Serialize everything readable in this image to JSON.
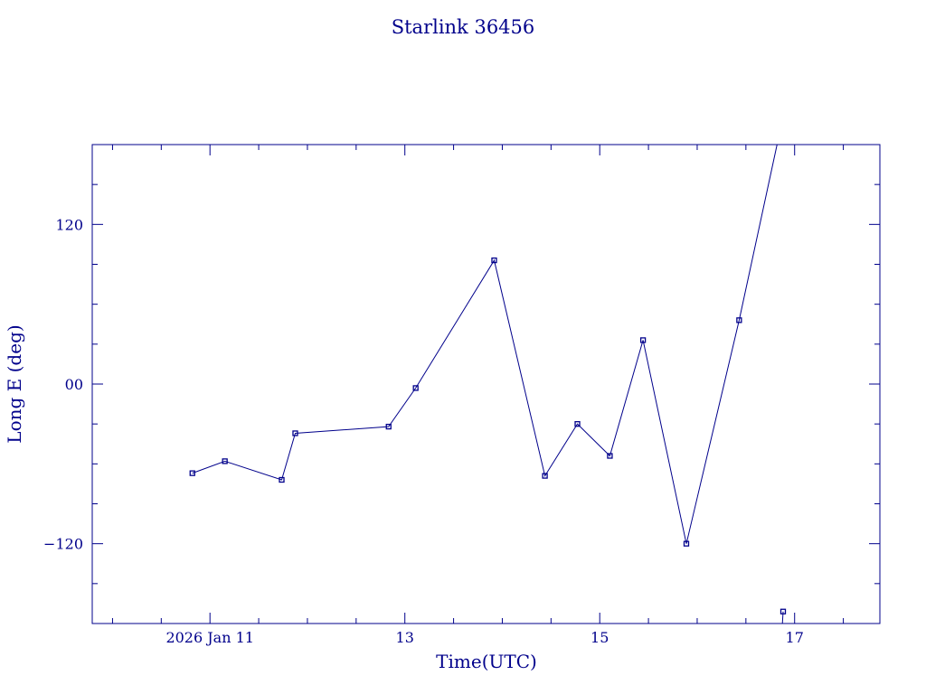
{
  "chart_data": {
    "type": "line",
    "title": "Starlink 36456",
    "xlabel": "Time(UTC)",
    "ylabel": "Long E (deg)",
    "x_unit": "date (UTC)",
    "xlim": [
      "2026-01-09T19:00:00Z",
      "2026-01-17T21:00:00Z"
    ],
    "ylim": [
      -180,
      180
    ],
    "x_ticks": [
      {
        "x": "2026-01-11T00:00:00Z",
        "label": "2026 Jan 11"
      },
      {
        "x": "2026-01-13T00:00:00Z",
        "label": "13"
      },
      {
        "x": "2026-01-15T00:00:00Z",
        "label": "15"
      },
      {
        "x": "2026-01-17T00:00:00Z",
        "label": "17"
      }
    ],
    "y_ticks": [
      {
        "y": 120,
        "label": "120"
      },
      {
        "y": 0,
        "label": "00"
      },
      {
        "y": -120,
        "label": "−120"
      }
    ],
    "grid": false,
    "color": "#00008b",
    "series": [
      {
        "points": [
          {
            "x": "2026-01-10T19:40:00Z",
            "y": -67
          },
          {
            "x": "2026-01-11T03:40:00Z",
            "y": -58
          },
          {
            "x": "2026-01-11T17:40:00Z",
            "y": -72
          },
          {
            "x": "2026-01-11T21:00:00Z",
            "y": -37
          },
          {
            "x": "2026-01-12T20:00:00Z",
            "y": -32
          },
          {
            "x": "2026-01-13T02:40:00Z",
            "y": -3
          },
          {
            "x": "2026-01-13T22:00:00Z",
            "y": 93
          },
          {
            "x": "2026-01-14T10:30:00Z",
            "y": -69
          },
          {
            "x": "2026-01-14T18:30:00Z",
            "y": -30
          },
          {
            "x": "2026-01-15T02:30:00Z",
            "y": -54
          },
          {
            "x": "2026-01-15T10:40:00Z",
            "y": 33
          },
          {
            "x": "2026-01-15T21:20:00Z",
            "y": -120
          },
          {
            "x": "2026-01-16T10:20:00Z",
            "y": 48
          },
          {
            "x": "2026-01-16T19:40:00Z",
            "y": 180,
            "marker": false
          }
        ]
      },
      {
        "points": [
          {
            "x": "2026-01-16T21:00:00Z",
            "y": -180,
            "marker": false
          },
          {
            "x": "2026-01-16T21:10:00Z",
            "y": -171
          }
        ]
      }
    ]
  }
}
